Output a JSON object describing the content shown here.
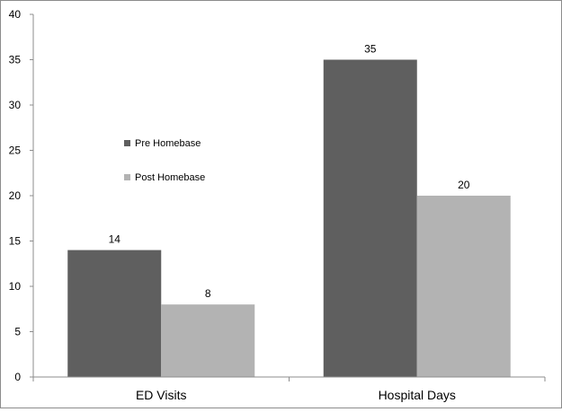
{
  "chart_data": {
    "type": "bar",
    "categories": [
      "ED Visits",
      "Hospital Days"
    ],
    "series": [
      {
        "name": "Pre Homebase",
        "values": [
          14,
          35
        ],
        "color": "#5f5f5f"
      },
      {
        "name": "Post Homebase",
        "values": [
          8,
          20
        ],
        "color": "#b3b3b3"
      }
    ],
    "data_labels": [
      [
        "14",
        "35"
      ],
      [
        "8",
        "20"
      ]
    ],
    "y_ticks": [
      0,
      5,
      10,
      15,
      20,
      25,
      30,
      35,
      40
    ],
    "ylim": [
      0,
      40
    ],
    "title": "",
    "xlabel": "",
    "ylabel": "",
    "grid": false,
    "legend_position": "center-left"
  },
  "colors": {
    "axis": "#8c8c8c",
    "border": "#8c8c8c"
  }
}
